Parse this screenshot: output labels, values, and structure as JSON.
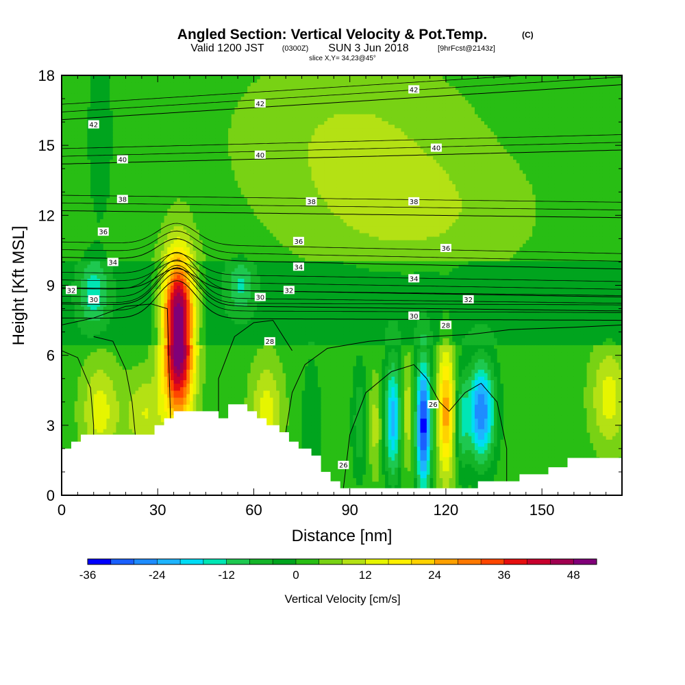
{
  "header": {
    "title": "Angled Section: Vertical Velocity & Pot.Temp.",
    "title_suffix": "(C)",
    "valid_prefix": "Valid 1200 JST",
    "valid_utc": "(0300Z)",
    "valid_date": "SUN 3 Jun 2018",
    "forecast": "[9hrFcst@2143z]",
    "slice": "slice X,Y= 34,23@45°"
  },
  "colors": {
    "levels": [
      -36,
      -32,
      -28,
      -24,
      -20,
      -16,
      -12,
      -8,
      -4,
      0,
      4,
      8,
      12,
      16,
      20,
      24,
      28,
      32,
      36,
      40,
      44,
      48,
      52
    ],
    "fills": [
      "#0000ff",
      "#1a5fff",
      "#1e8cff",
      "#1eb4ff",
      "#00dcf5",
      "#00e6b4",
      "#1ec850",
      "#14b428",
      "#00a41e",
      "#28be14",
      "#78d214",
      "#b4e114",
      "#e6f500",
      "#fff000",
      "#ffd200",
      "#ffa000",
      "#ff7800",
      "#ff4600",
      "#e60f0f",
      "#c8002d",
      "#a00050",
      "#800078"
    ],
    "terrain": "#ffffff",
    "contour": "#000000"
  },
  "chart_data": {
    "type": "heatmap",
    "title": "Angled Section: Vertical Velocity & Pot.Temp.",
    "xlabel": "Distance [nm]",
    "ylabel": "Height [Kft MSL]",
    "xlim": [
      0,
      175
    ],
    "ylim": [
      0,
      18
    ],
    "xticks": [
      0,
      30,
      60,
      90,
      120,
      150
    ],
    "yticks": [
      0,
      3,
      6,
      9,
      12,
      15,
      18
    ],
    "colorbar": {
      "label": "Vertical Velocity [cm/s]",
      "ticks": [
        -36,
        -24,
        -12,
        0,
        12,
        24,
        36,
        48
      ],
      "min": -36,
      "max": 52
    },
    "vertical_velocity_features": [
      {
        "x": 36.5,
        "z": 6.6,
        "peak": 52,
        "sx": 3.3,
        "sz": 2.3
      },
      {
        "x": 36.5,
        "z": 8.7,
        "peak": 12,
        "sx": 4.5,
        "sz": 1.2
      },
      {
        "x": 113,
        "z": 3.0,
        "peak": -36,
        "sx": 1.7,
        "sz": 2.0
      },
      {
        "x": 131,
        "z": 3.6,
        "peak": -30,
        "sx": 3.0,
        "sz": 1.5
      },
      {
        "x": 103.5,
        "z": 3.3,
        "peak": -24,
        "sx": 1.8,
        "sz": 1.8
      },
      {
        "x": 120,
        "z": 3.6,
        "peak": 24,
        "sx": 1.8,
        "sz": 2.0
      },
      {
        "x": 108,
        "z": 3.5,
        "peak": 10,
        "sx": 1.3,
        "sz": 1.6
      },
      {
        "x": 125,
        "z": 3.2,
        "peak": -12,
        "sx": 1.3,
        "sz": 1.5
      },
      {
        "x": 98,
        "z": 3.0,
        "peak": 8,
        "sx": 1.3,
        "sz": 1.5
      },
      {
        "x": 93,
        "z": 3.2,
        "peak": -10,
        "sx": 1.5,
        "sz": 1.6
      },
      {
        "x": 78,
        "z": 3.0,
        "peak": -6,
        "sx": 2.0,
        "sz": 2.0
      },
      {
        "x": 12,
        "z": 3.6,
        "peak": 12,
        "sx": 4.0,
        "sz": 1.5
      },
      {
        "x": 26,
        "z": 3.5,
        "peak": 10,
        "sx": 4.5,
        "sz": 1.2
      },
      {
        "x": 64,
        "z": 3.6,
        "peak": 12,
        "sx": 3.5,
        "sz": 1.5
      },
      {
        "x": 10,
        "z": 8.7,
        "peak": -12,
        "sx": 3.0,
        "sz": 1.0
      },
      {
        "x": 56,
        "z": 9.0,
        "peak": -10,
        "sx": 3.0,
        "sz": 0.8
      },
      {
        "x": 171,
        "z": 4.2,
        "peak": 12,
        "sx": 4.0,
        "sz": 1.5
      },
      {
        "x": 12,
        "z": 15.5,
        "peak": -6,
        "sx": 2.5,
        "sz": 2.5
      },
      {
        "x": 90,
        "z": 15.5,
        "peak": 6,
        "sx": 25,
        "sz": 2.5
      },
      {
        "x": 110,
        "z": 12,
        "peak": 6,
        "sx": 25,
        "sz": 2.0
      }
    ],
    "terrain_profile": [
      [
        0,
        2.0
      ],
      [
        3,
        2.0
      ],
      [
        3,
        2.3
      ],
      [
        6,
        2.3
      ],
      [
        6,
        2.6
      ],
      [
        29,
        2.6
      ],
      [
        29,
        3.0
      ],
      [
        32,
        3.0
      ],
      [
        32,
        3.3
      ],
      [
        35,
        3.3
      ],
      [
        35,
        3.6
      ],
      [
        49,
        3.6
      ],
      [
        49,
        3.3
      ],
      [
        52,
        3.3
      ],
      [
        52,
        3.9
      ],
      [
        58,
        3.9
      ],
      [
        58,
        3.6
      ],
      [
        61,
        3.6
      ],
      [
        61,
        3.3
      ],
      [
        64,
        3.3
      ],
      [
        64,
        3.0
      ],
      [
        68,
        3.0
      ],
      [
        68,
        2.7
      ],
      [
        71,
        2.7
      ],
      [
        71,
        2.3
      ],
      [
        74,
        2.3
      ],
      [
        74,
        2.0
      ],
      [
        78,
        2.0
      ],
      [
        78,
        1.7
      ],
      [
        81,
        1.7
      ],
      [
        81,
        1.0
      ],
      [
        84,
        1.0
      ],
      [
        84,
        0.6
      ],
      [
        87,
        0.6
      ],
      [
        87,
        0.3
      ],
      [
        130,
        0.3
      ],
      [
        130,
        0.6
      ],
      [
        143,
        0.6
      ],
      [
        143,
        0.9
      ],
      [
        152,
        0.9
      ],
      [
        152,
        1.2
      ],
      [
        158,
        1.2
      ],
      [
        158,
        1.6
      ],
      [
        175,
        1.6
      ]
    ],
    "potential_temperature_contours": [
      {
        "value": 26,
        "kind": "dome",
        "path": [
          [
            88,
            0.3
          ],
          [
            90,
            2.6
          ],
          [
            95,
            4.4
          ],
          [
            103,
            5.3
          ],
          [
            110,
            5.6
          ],
          [
            114,
            5.0
          ],
          [
            118,
            4.0
          ],
          [
            121,
            3.6
          ],
          [
            126,
            4.4
          ],
          [
            131,
            4.8
          ],
          [
            136,
            4.0
          ],
          [
            139,
            2.0
          ],
          [
            139,
            0.6
          ]
        ]
      },
      {
        "value": 28,
        "kind": "dome",
        "path": [
          [
            70,
            2.7
          ],
          [
            72,
            4.4
          ],
          [
            76,
            5.6
          ],
          [
            83,
            6.3
          ],
          [
            96,
            6.6
          ],
          [
            115,
            6.8
          ],
          [
            128,
            6.9
          ],
          [
            140,
            7.1
          ],
          [
            160,
            7.2
          ],
          [
            175,
            7.3
          ]
        ]
      },
      {
        "value": 28,
        "kind": "dome",
        "path": [
          [
            49,
            3.6
          ],
          [
            49,
            5.0
          ],
          [
            54,
            6.8
          ],
          [
            60,
            7.4
          ],
          [
            66,
            7.5
          ],
          [
            72,
            6.2
          ]
        ]
      },
      {
        "value": 28,
        "kind": "dome",
        "path": [
          [
            0,
            6.2
          ],
          [
            5,
            5.9
          ],
          [
            9,
            4.6
          ],
          [
            10,
            3.0
          ],
          [
            10,
            2.6
          ]
        ]
      },
      {
        "value": 28,
        "kind": "dome",
        "path": [
          [
            10,
            6.8
          ],
          [
            16,
            6.6
          ],
          [
            20,
            5.4
          ],
          [
            22,
            4.0
          ],
          [
            23,
            2.6
          ]
        ]
      },
      {
        "value": 30,
        "kind": "dome",
        "path": [
          [
            0,
            7.3
          ],
          [
            10,
            7.6
          ],
          [
            20,
            8.1
          ],
          [
            28,
            8.2
          ],
          [
            33,
            8.0
          ],
          [
            34,
            3.3
          ]
        ]
      }
    ],
    "theta_levels": [
      {
        "value": 30,
        "z0": 7.6,
        "z1": 7.5
      },
      {
        "value": 32,
        "z0": 8.2,
        "z1": 7.9
      },
      {
        "value": 34,
        "z0": 8.9,
        "z1": 8.5
      },
      {
        "value": 36,
        "z0": 10.2,
        "z1": 9.7
      },
      {
        "value": 38,
        "z0": 12.2,
        "z1": 11.9
      },
      {
        "value": 40,
        "z0": 14.2,
        "z1": 14.8
      },
      {
        "value": 42,
        "z0": 16.1,
        "z1": 17.6
      }
    ],
    "contour_labels": [
      {
        "text": "42",
        "x": 10,
        "z": 15.9
      },
      {
        "text": "42",
        "x": 62,
        "z": 16.8
      },
      {
        "text": "42",
        "x": 110,
        "z": 17.4
      },
      {
        "text": "40",
        "x": 19,
        "z": 14.4
      },
      {
        "text": "40",
        "x": 62,
        "z": 14.6
      },
      {
        "text": "40",
        "x": 117,
        "z": 14.9
      },
      {
        "text": "38",
        "x": 19,
        "z": 12.7
      },
      {
        "text": "38",
        "x": 78,
        "z": 12.6
      },
      {
        "text": "38",
        "x": 110,
        "z": 12.6
      },
      {
        "text": "36",
        "x": 13,
        "z": 11.3
      },
      {
        "text": "36",
        "x": 74,
        "z": 10.9
      },
      {
        "text": "36",
        "x": 120,
        "z": 10.6
      },
      {
        "text": "34",
        "x": 16,
        "z": 10.0
      },
      {
        "text": "34",
        "x": 74,
        "z": 9.8
      },
      {
        "text": "34",
        "x": 110,
        "z": 9.3
      },
      {
        "text": "32",
        "x": 3,
        "z": 8.8
      },
      {
        "text": "32",
        "x": 71,
        "z": 8.8
      },
      {
        "text": "32",
        "x": 127,
        "z": 8.4
      },
      {
        "text": "30",
        "x": 10,
        "z": 8.4
      },
      {
        "text": "30",
        "x": 62,
        "z": 8.5
      },
      {
        "text": "30",
        "x": 110,
        "z": 7.7
      },
      {
        "text": "28",
        "x": 65,
        "z": 6.6
      },
      {
        "text": "28",
        "x": 120,
        "z": 7.3
      },
      {
        "text": "26",
        "x": 116,
        "z": 3.9
      },
      {
        "text": "26",
        "x": 88,
        "z": 1.3
      }
    ]
  }
}
